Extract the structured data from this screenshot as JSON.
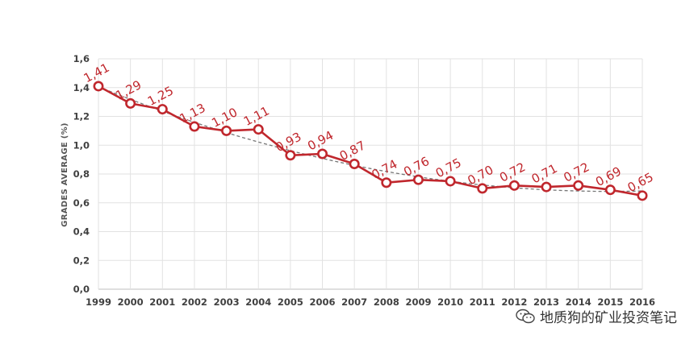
{
  "chart_data": {
    "type": "line",
    "title": "",
    "xlabel": "",
    "ylabel": "GRADES AVERAGE (%)",
    "categories": [
      "1999",
      "2000",
      "2001",
      "2002",
      "2003",
      "2004",
      "2005",
      "2006",
      "2007",
      "2008",
      "2009",
      "2010",
      "2011",
      "2012",
      "2013",
      "2014",
      "2015",
      "2016"
    ],
    "series": [
      {
        "values": [
          1.41,
          1.29,
          1.25,
          1.13,
          1.1,
          1.11,
          0.93,
          0.94,
          0.87,
          0.74,
          0.76,
          0.75,
          0.7,
          0.72,
          0.71,
          0.72,
          0.69,
          0.65
        ],
        "data_labels": [
          "1,41",
          "1,29",
          "1,25",
          "1,13",
          "1,10",
          "1,11",
          "0,93",
          "0,94",
          "0,87",
          "0,74",
          "0,76",
          "0,75",
          "0,70",
          "0,72",
          "0,71",
          "0,72",
          "0,69",
          "0,65"
        ],
        "color": "#c0272d"
      }
    ],
    "trendline": {
      "style": "dashed",
      "color": "#777777"
    },
    "ylim": [
      0,
      1.6
    ],
    "yticks": [
      "0,0",
      "0,2",
      "0,4",
      "0,6",
      "0,8",
      "1,0",
      "1,2",
      "1,4",
      "1,6"
    ],
    "grid": true,
    "legend": "none"
  },
  "watermark": {
    "text": "地质狗的矿业投资笔记",
    "icon": "wechat-icon"
  }
}
